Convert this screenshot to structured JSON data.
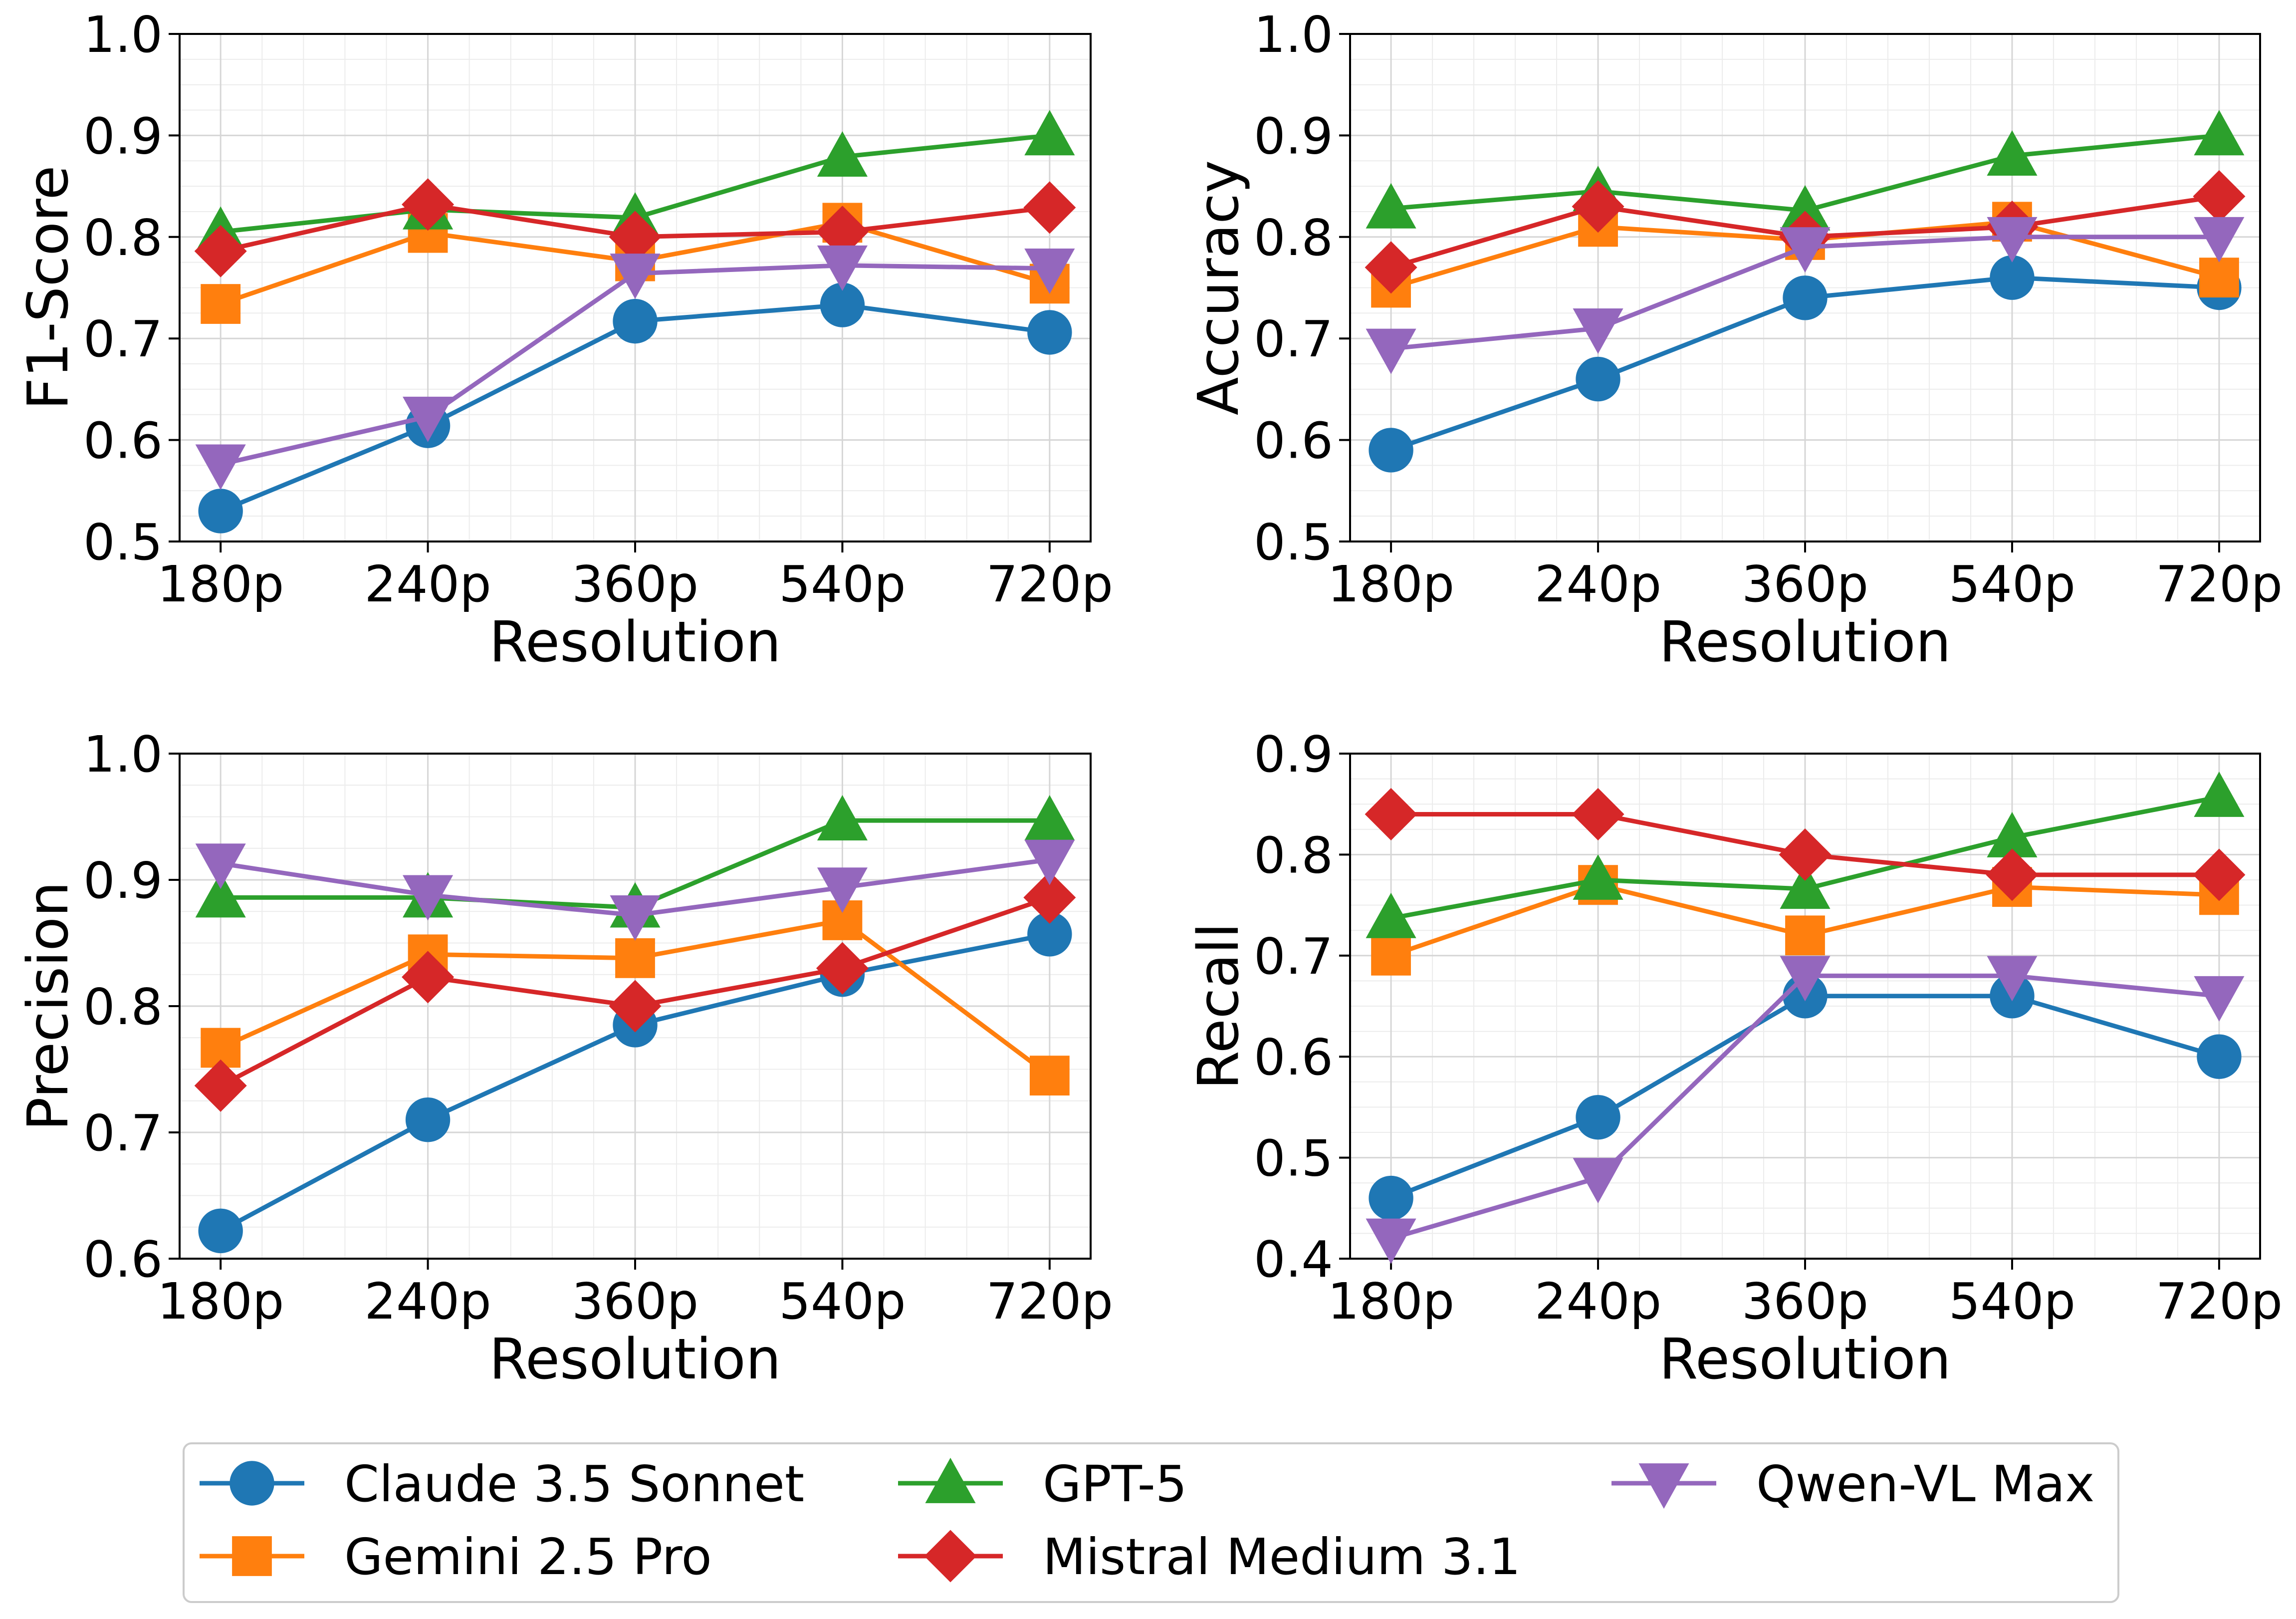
{
  "colors": {
    "claude": "#1f77b4",
    "gemini": "#ff7f0e",
    "gpt": "#2ca02c",
    "mistral": "#d62728",
    "qwen": "#9467bd"
  },
  "legend": [
    {
      "key": "claude",
      "label": "Claude 3.5 Sonnet",
      "marker": "circle"
    },
    {
      "key": "gemini",
      "label": "Gemini 2.5 Pro",
      "marker": "square"
    },
    {
      "key": "gpt",
      "label": "GPT-5",
      "marker": "triangle-up"
    },
    {
      "key": "mistral",
      "label": "Mistral Medium 3.1",
      "marker": "diamond"
    },
    {
      "key": "qwen",
      "label": "Qwen-VL Max",
      "marker": "triangle-down"
    }
  ],
  "chart_data": [
    {
      "type": "line",
      "title": "",
      "xlabel": "Resolution",
      "ylabel": "F1-Score",
      "categories": [
        "180p",
        "240p",
        "360p",
        "540p",
        "720p"
      ],
      "ylim": [
        0.5,
        1.0
      ],
      "yticks": [
        "0.5",
        "0.6",
        "0.7",
        "0.8",
        "0.9",
        "1.0"
      ],
      "grid": true,
      "series": [
        {
          "name": "Claude 3.5 Sonnet",
          "key": "claude",
          "marker": "circle",
          "values": [
            0.53,
            0.614,
            0.717,
            0.733,
            0.706
          ]
        },
        {
          "name": "Gemini 2.5 Pro",
          "key": "gemini",
          "marker": "square",
          "values": [
            0.734,
            0.804,
            0.776,
            0.814,
            0.754
          ]
        },
        {
          "name": "GPT-5",
          "key": "gpt",
          "marker": "triangle-up",
          "values": [
            0.805,
            0.827,
            0.819,
            0.879,
            0.9
          ]
        },
        {
          "name": "Mistral Medium 3.1",
          "key": "mistral",
          "marker": "diamond",
          "values": [
            0.786,
            0.832,
            0.8,
            0.805,
            0.829
          ]
        },
        {
          "name": "Qwen-VL Max",
          "key": "qwen",
          "marker": "triangle-down",
          "values": [
            0.576,
            0.623,
            0.764,
            0.772,
            0.769
          ]
        }
      ]
    },
    {
      "type": "line",
      "title": "",
      "xlabel": "Resolution",
      "ylabel": "Accuracy",
      "categories": [
        "180p",
        "240p",
        "360p",
        "540p",
        "720p"
      ],
      "ylim": [
        0.5,
        1.0
      ],
      "yticks": [
        "0.5",
        "0.6",
        "0.7",
        "0.8",
        "0.9",
        "1.0"
      ],
      "grid": true,
      "series": [
        {
          "name": "Claude 3.5 Sonnet",
          "key": "claude",
          "marker": "circle",
          "values": [
            0.59,
            0.66,
            0.74,
            0.76,
            0.75
          ]
        },
        {
          "name": "Gemini 2.5 Pro",
          "key": "gemini",
          "marker": "square",
          "values": [
            0.75,
            0.81,
            0.797,
            0.815,
            0.76
          ]
        },
        {
          "name": "GPT-5",
          "key": "gpt",
          "marker": "triangle-up",
          "values": [
            0.828,
            0.845,
            0.826,
            0.88,
            0.9
          ]
        },
        {
          "name": "Mistral Medium 3.1",
          "key": "mistral",
          "marker": "diamond",
          "values": [
            0.77,
            0.83,
            0.8,
            0.81,
            0.84
          ]
        },
        {
          "name": "Qwen-VL Max",
          "key": "qwen",
          "marker": "triangle-down",
          "values": [
            0.69,
            0.71,
            0.79,
            0.8,
            0.8
          ]
        }
      ]
    },
    {
      "type": "line",
      "title": "",
      "xlabel": "Resolution",
      "ylabel": "Precision",
      "categories": [
        "180p",
        "240p",
        "360p",
        "540p",
        "720p"
      ],
      "ylim": [
        0.6,
        1.0
      ],
      "yticks": [
        "0.6",
        "0.7",
        "0.8",
        "0.9",
        "1.0"
      ],
      "grid": true,
      "series": [
        {
          "name": "Claude 3.5 Sonnet",
          "key": "claude",
          "marker": "circle",
          "values": [
            0.622,
            0.71,
            0.785,
            0.825,
            0.857
          ]
        },
        {
          "name": "Gemini 2.5 Pro",
          "key": "gemini",
          "marker": "square",
          "values": [
            0.767,
            0.841,
            0.838,
            0.868,
            0.745
          ]
        },
        {
          "name": "GPT-5",
          "key": "gpt",
          "marker": "triangle-up",
          "values": [
            0.886,
            0.886,
            0.878,
            0.947,
            0.947
          ]
        },
        {
          "name": "Mistral Medium 3.1",
          "key": "mistral",
          "marker": "diamond",
          "values": [
            0.737,
            0.823,
            0.8,
            0.83,
            0.886
          ]
        },
        {
          "name": "Qwen-VL Max",
          "key": "qwen",
          "marker": "triangle-down",
          "values": [
            0.913,
            0.888,
            0.872,
            0.894,
            0.916
          ]
        }
      ]
    },
    {
      "type": "line",
      "title": "",
      "xlabel": "Resolution",
      "ylabel": "Recall",
      "categories": [
        "180p",
        "240p",
        "360p",
        "540p",
        "720p"
      ],
      "ylim": [
        0.4,
        0.9
      ],
      "yticks": [
        "0.4",
        "0.5",
        "0.6",
        "0.7",
        "0.8",
        "0.9"
      ],
      "grid": true,
      "series": [
        {
          "name": "Claude 3.5 Sonnet",
          "key": "claude",
          "marker": "circle",
          "values": [
            0.46,
            0.54,
            0.66,
            0.66,
            0.6
          ]
        },
        {
          "name": "Gemini 2.5 Pro",
          "key": "gemini",
          "marker": "square",
          "values": [
            0.7,
            0.77,
            0.72,
            0.768,
            0.76
          ]
        },
        {
          "name": "GPT-5",
          "key": "gpt",
          "marker": "triangle-up",
          "values": [
            0.737,
            0.775,
            0.766,
            0.817,
            0.857
          ]
        },
        {
          "name": "Mistral Medium 3.1",
          "key": "mistral",
          "marker": "diamond",
          "values": [
            0.84,
            0.84,
            0.8,
            0.78,
            0.78
          ]
        },
        {
          "name": "Qwen-VL Max",
          "key": "qwen",
          "marker": "triangle-down",
          "values": [
            0.42,
            0.48,
            0.68,
            0.68,
            0.66
          ]
        }
      ]
    }
  ]
}
